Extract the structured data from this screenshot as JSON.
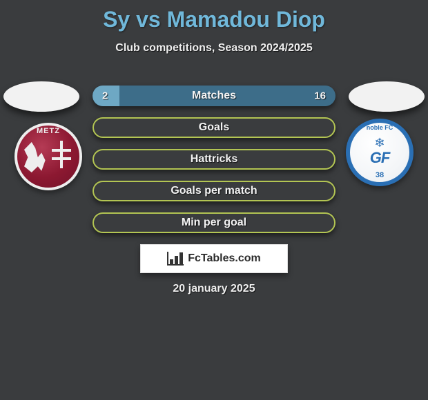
{
  "title": "Sy vs Mamadou Diop",
  "subtitle": "Club competitions, Season 2024/2025",
  "date": "20 january 2025",
  "logo_text": "FcTables.com",
  "colors": {
    "background": "#3a3c3e",
    "title": "#70b8da",
    "text": "#eeeeee",
    "bar_outline": "#b3c553",
    "match_bar_bg": "#3d6d89",
    "match_bar_left_fill": "#6ea8c4"
  },
  "badge_left": {
    "top_text": "METZ",
    "primary_color": "#8c1831",
    "border_color": "#eeeeee"
  },
  "badge_right": {
    "arc_text": "noble FC",
    "main_text": "GF",
    "bottom_text": "38",
    "primary_color": "#2a6fb4"
  },
  "bars": [
    {
      "type": "split",
      "label": "Matches",
      "left_value": "2",
      "right_value": "16",
      "left_ratio_pct": 11
    },
    {
      "type": "outline",
      "label": "Goals"
    },
    {
      "type": "outline",
      "label": "Hattricks"
    },
    {
      "type": "outline",
      "label": "Goals per match"
    },
    {
      "type": "outline",
      "label": "Min per goal"
    }
  ]
}
